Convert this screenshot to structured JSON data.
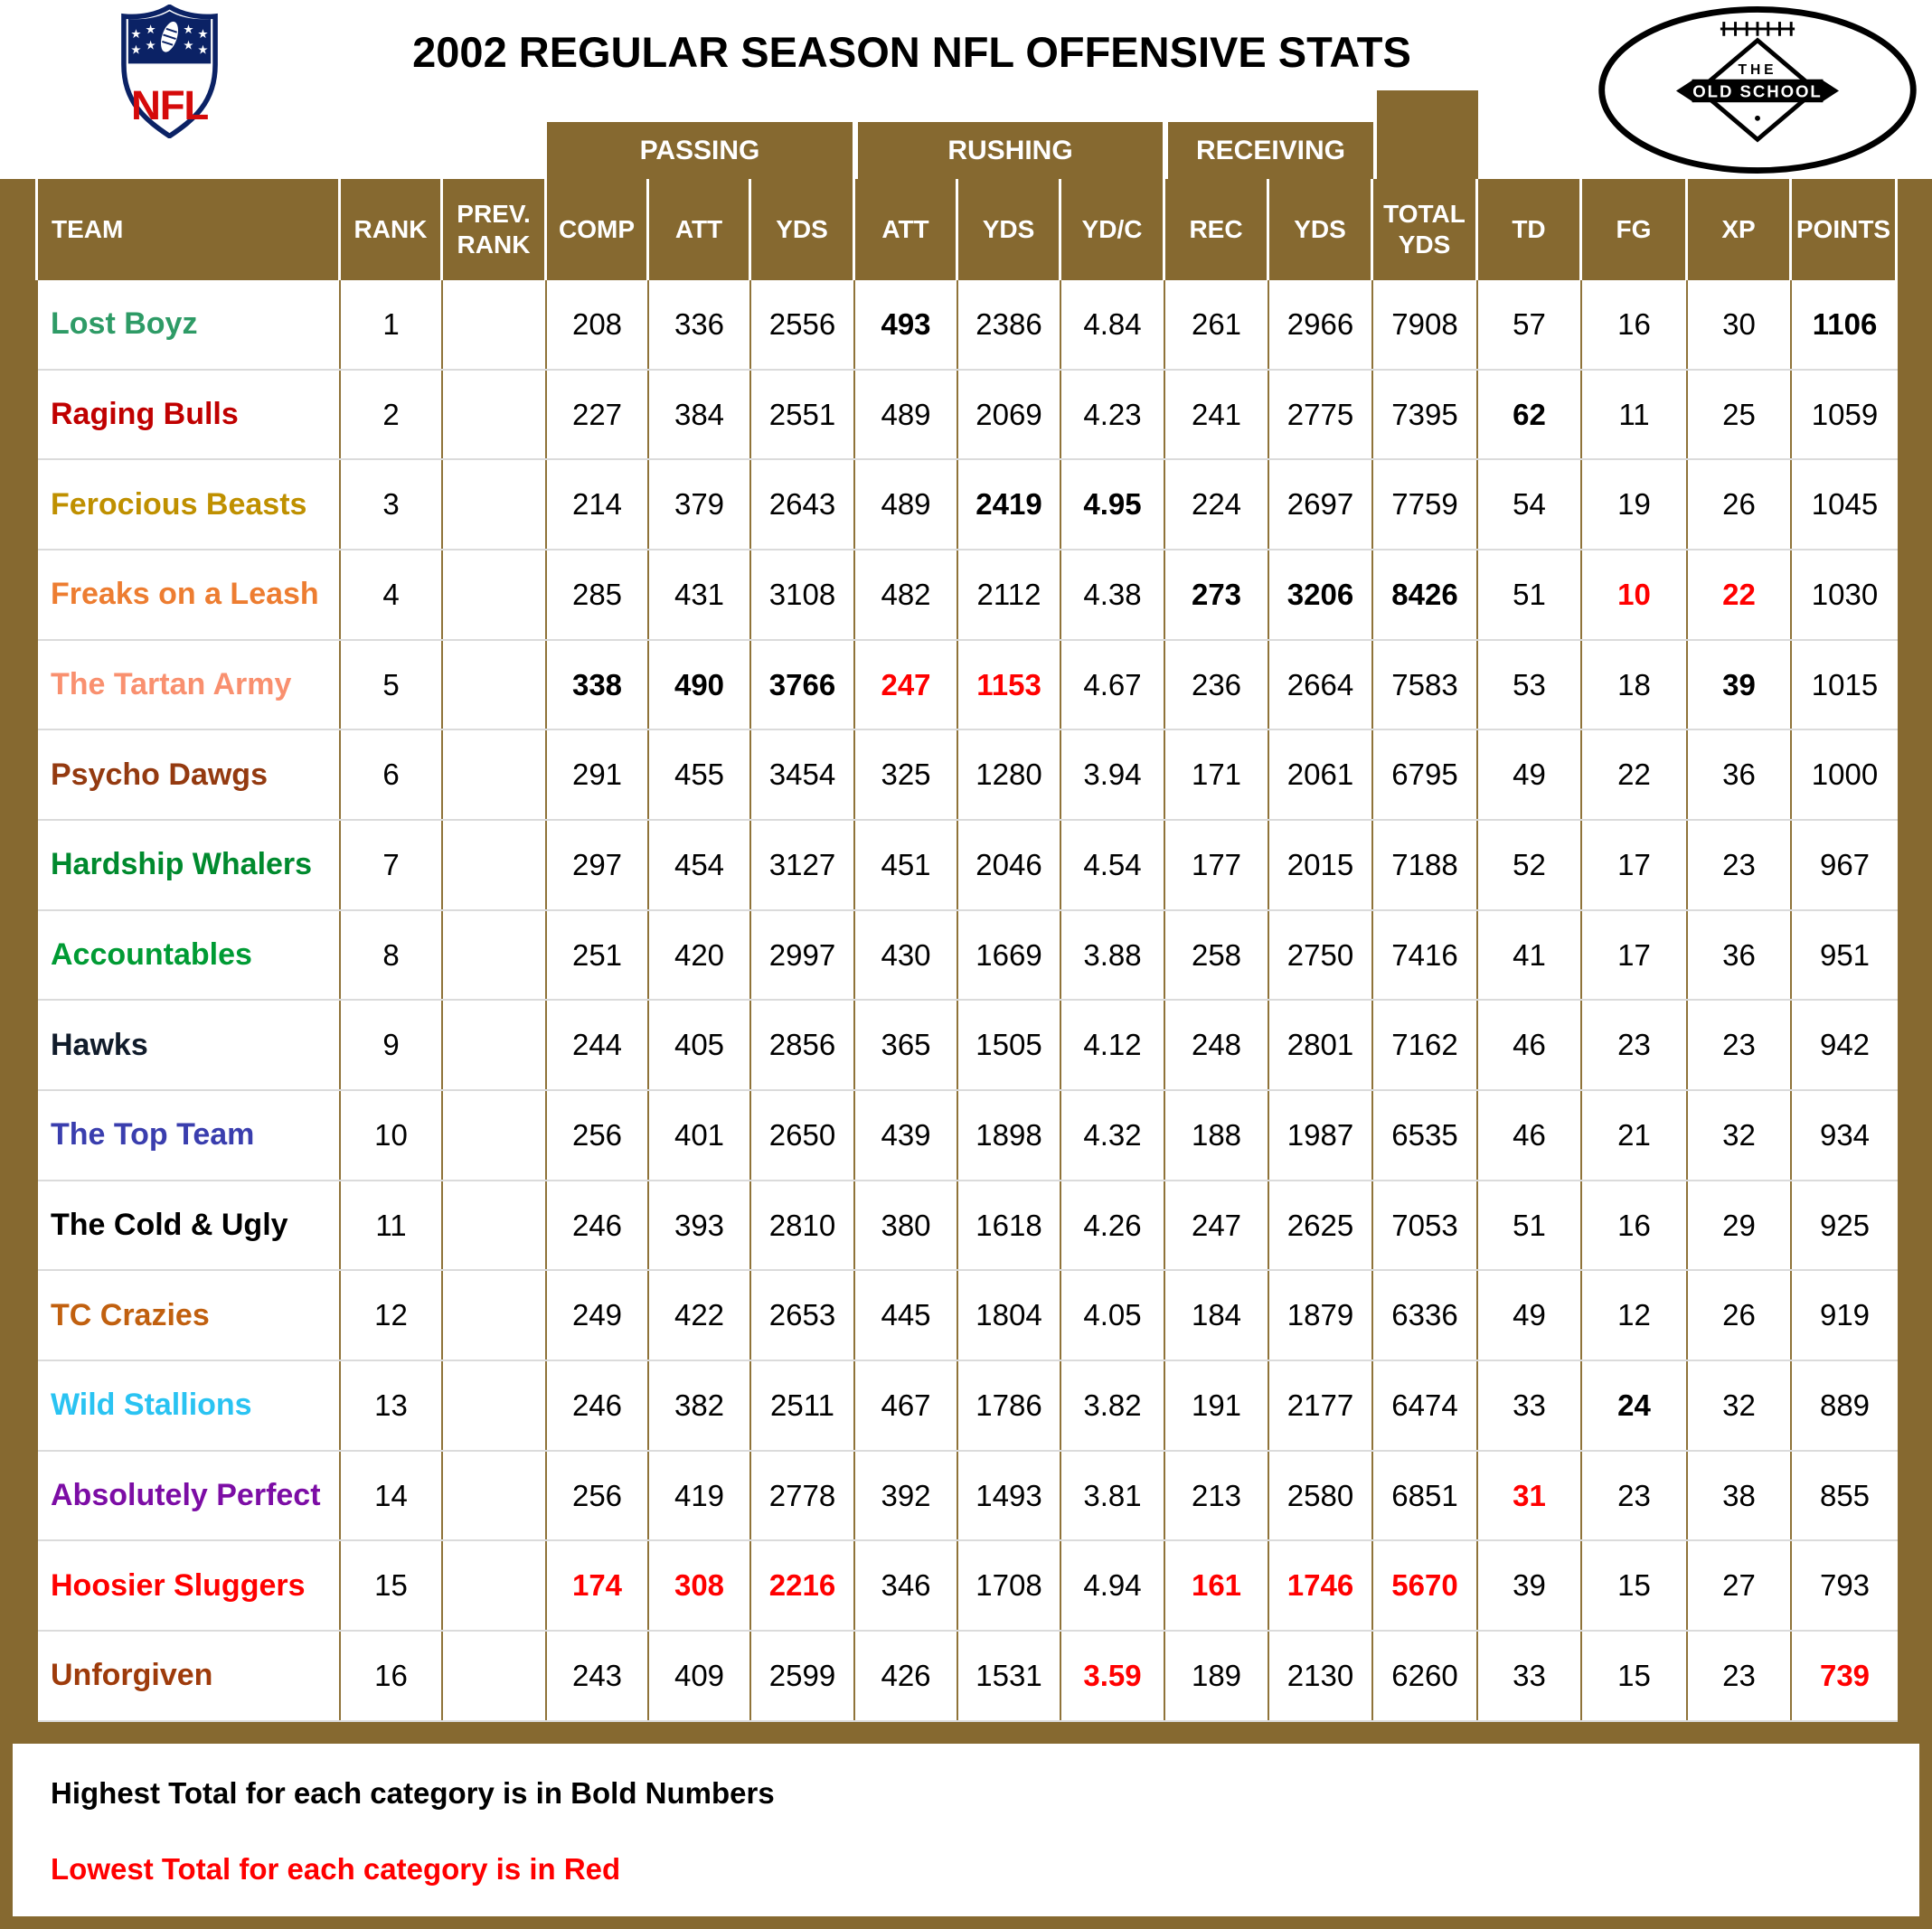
{
  "header": {
    "title": "2002 REGULAR SEASON NFL OFFENSIVE STATS",
    "nfl_logo_text": "NFL",
    "badge": {
      "the": "THE",
      "name": "OLD SCHOOL"
    }
  },
  "colors": {
    "header_brown": "#866930",
    "grid_vline": "#8F7339",
    "grid_hline": "#DBDBDB",
    "highlight_red": "#FF0000",
    "nfl_navy": "#0B2265",
    "nfl_red": "#D50A0A"
  },
  "table": {
    "group_headers": [
      {
        "label": "PASSING"
      },
      {
        "label": "RUSHING"
      },
      {
        "label": "RECEIVING"
      }
    ],
    "columns": [
      "TEAM",
      "RANK",
      "PREV. RANK",
      "COMP",
      "ATT",
      "YDS",
      "ATT",
      "YDS",
      "YD/C",
      "REC",
      "YDS",
      "TOTAL YDS",
      "TD",
      "FG",
      "XP",
      "POINTS"
    ],
    "rows": [
      {
        "team": "Lost Boyz",
        "team_color": "#2E9B66",
        "rank": "1",
        "prev_rank": "",
        "stats": [
          {
            "v": "208"
          },
          {
            "v": "336"
          },
          {
            "v": "2556"
          },
          {
            "v": "493",
            "s": "bold"
          },
          {
            "v": "2386"
          },
          {
            "v": "4.84"
          },
          {
            "v": "261"
          },
          {
            "v": "2966"
          },
          {
            "v": "7908"
          },
          {
            "v": "57"
          },
          {
            "v": "16"
          },
          {
            "v": "30"
          },
          {
            "v": "1106",
            "s": "bold"
          }
        ]
      },
      {
        "team": "Raging Bulls",
        "team_color": "#C00000",
        "rank": "2",
        "prev_rank": "",
        "stats": [
          {
            "v": "227"
          },
          {
            "v": "384"
          },
          {
            "v": "2551"
          },
          {
            "v": "489"
          },
          {
            "v": "2069"
          },
          {
            "v": "4.23"
          },
          {
            "v": "241"
          },
          {
            "v": "2775"
          },
          {
            "v": "7395"
          },
          {
            "v": "62",
            "s": "bold"
          },
          {
            "v": "11"
          },
          {
            "v": "25"
          },
          {
            "v": "1059"
          }
        ]
      },
      {
        "team": "Ferocious Beasts",
        "team_color": "#BF9000",
        "rank": "3",
        "prev_rank": "",
        "stats": [
          {
            "v": "214"
          },
          {
            "v": "379"
          },
          {
            "v": "2643"
          },
          {
            "v": "489"
          },
          {
            "v": "2419",
            "s": "bold"
          },
          {
            "v": "4.95",
            "s": "bold"
          },
          {
            "v": "224"
          },
          {
            "v": "2697"
          },
          {
            "v": "7759"
          },
          {
            "v": "54"
          },
          {
            "v": "19"
          },
          {
            "v": "26"
          },
          {
            "v": "1045"
          }
        ]
      },
      {
        "team": "Freaks on a Leash",
        "team_color": "#ED7D31",
        "rank": "4",
        "prev_rank": "",
        "stats": [
          {
            "v": "285"
          },
          {
            "v": "431"
          },
          {
            "v": "3108"
          },
          {
            "v": "482"
          },
          {
            "v": "2112"
          },
          {
            "v": "4.38"
          },
          {
            "v": "273",
            "s": "bold"
          },
          {
            "v": "3206",
            "s": "bold"
          },
          {
            "v": "8426",
            "s": "bold"
          },
          {
            "v": "51"
          },
          {
            "v": "10",
            "s": "red"
          },
          {
            "v": "22",
            "s": "red"
          },
          {
            "v": "1030"
          }
        ]
      },
      {
        "team": "The Tartan Army",
        "team_color": "#F9906F",
        "rank": "5",
        "prev_rank": "",
        "stats": [
          {
            "v": "338",
            "s": "bold"
          },
          {
            "v": "490",
            "s": "bold"
          },
          {
            "v": "3766",
            "s": "bold"
          },
          {
            "v": "247",
            "s": "red"
          },
          {
            "v": "1153",
            "s": "red"
          },
          {
            "v": "4.67"
          },
          {
            "v": "236"
          },
          {
            "v": "2664"
          },
          {
            "v": "7583"
          },
          {
            "v": "53"
          },
          {
            "v": "18"
          },
          {
            "v": "39",
            "s": "bold"
          },
          {
            "v": "1015"
          }
        ]
      },
      {
        "team": "Psycho Dawgs",
        "team_color": "#943A10",
        "rank": "6",
        "prev_rank": "",
        "stats": [
          {
            "v": "291"
          },
          {
            "v": "455"
          },
          {
            "v": "3454"
          },
          {
            "v": "325"
          },
          {
            "v": "1280"
          },
          {
            "v": "3.94"
          },
          {
            "v": "171"
          },
          {
            "v": "2061"
          },
          {
            "v": "6795"
          },
          {
            "v": "49"
          },
          {
            "v": "22"
          },
          {
            "v": "36"
          },
          {
            "v": "1000"
          }
        ]
      },
      {
        "team": "Hardship Whalers",
        "team_color": "#008A2E",
        "rank": "7",
        "prev_rank": "",
        "stats": [
          {
            "v": "297"
          },
          {
            "v": "454"
          },
          {
            "v": "3127"
          },
          {
            "v": "451"
          },
          {
            "v": "2046"
          },
          {
            "v": "4.54"
          },
          {
            "v": "177"
          },
          {
            "v": "2015"
          },
          {
            "v": "7188"
          },
          {
            "v": "52"
          },
          {
            "v": "17"
          },
          {
            "v": "23"
          },
          {
            "v": "967"
          }
        ]
      },
      {
        "team": "Accountables",
        "team_color": "#009B34",
        "rank": "8",
        "prev_rank": "",
        "stats": [
          {
            "v": "251"
          },
          {
            "v": "420"
          },
          {
            "v": "2997"
          },
          {
            "v": "430"
          },
          {
            "v": "1669"
          },
          {
            "v": "3.88"
          },
          {
            "v": "258"
          },
          {
            "v": "2750"
          },
          {
            "v": "7416"
          },
          {
            "v": "41"
          },
          {
            "v": "17"
          },
          {
            "v": "36"
          },
          {
            "v": "951"
          }
        ]
      },
      {
        "team": "Hawks",
        "team_color": "#111C2B",
        "rank": "9",
        "prev_rank": "",
        "stats": [
          {
            "v": "244"
          },
          {
            "v": "405"
          },
          {
            "v": "2856"
          },
          {
            "v": "365"
          },
          {
            "v": "1505"
          },
          {
            "v": "4.12"
          },
          {
            "v": "248"
          },
          {
            "v": "2801"
          },
          {
            "v": "7162"
          },
          {
            "v": "46"
          },
          {
            "v": "23"
          },
          {
            "v": "23"
          },
          {
            "v": "942"
          }
        ]
      },
      {
        "team": "The Top Team",
        "team_color": "#3A3EAE",
        "rank": "10",
        "prev_rank": "",
        "stats": [
          {
            "v": "256"
          },
          {
            "v": "401"
          },
          {
            "v": "2650"
          },
          {
            "v": "439"
          },
          {
            "v": "1898"
          },
          {
            "v": "4.32"
          },
          {
            "v": "188"
          },
          {
            "v": "1987"
          },
          {
            "v": "6535"
          },
          {
            "v": "46"
          },
          {
            "v": "21"
          },
          {
            "v": "32"
          },
          {
            "v": "934"
          }
        ]
      },
      {
        "team": "The Cold & Ugly",
        "team_color": "#000000",
        "rank": "11",
        "prev_rank": "",
        "stats": [
          {
            "v": "246"
          },
          {
            "v": "393"
          },
          {
            "v": "2810"
          },
          {
            "v": "380"
          },
          {
            "v": "1618"
          },
          {
            "v": "4.26"
          },
          {
            "v": "247"
          },
          {
            "v": "2625"
          },
          {
            "v": "7053"
          },
          {
            "v": "51"
          },
          {
            "v": "16"
          },
          {
            "v": "29"
          },
          {
            "v": "925"
          }
        ]
      },
      {
        "team": "TC Crazies",
        "team_color": "#C1600F",
        "rank": "12",
        "prev_rank": "",
        "stats": [
          {
            "v": "249"
          },
          {
            "v": "422"
          },
          {
            "v": "2653"
          },
          {
            "v": "445"
          },
          {
            "v": "1804"
          },
          {
            "v": "4.05"
          },
          {
            "v": "184"
          },
          {
            "v": "1879"
          },
          {
            "v": "6336"
          },
          {
            "v": "49"
          },
          {
            "v": "12"
          },
          {
            "v": "26"
          },
          {
            "v": "919"
          }
        ]
      },
      {
        "team": "Wild Stallions",
        "team_color": "#2AC3F2",
        "rank": "13",
        "prev_rank": "",
        "stats": [
          {
            "v": "246"
          },
          {
            "v": "382"
          },
          {
            "v": "2511"
          },
          {
            "v": "467"
          },
          {
            "v": "1786"
          },
          {
            "v": "3.82"
          },
          {
            "v": "191"
          },
          {
            "v": "2177"
          },
          {
            "v": "6474"
          },
          {
            "v": "33"
          },
          {
            "v": "24",
            "s": "bold"
          },
          {
            "v": "32"
          },
          {
            "v": "889"
          }
        ]
      },
      {
        "team": "Absolutely Perfect",
        "team_color": "#7C0DA5",
        "rank": "14",
        "prev_rank": "",
        "stats": [
          {
            "v": "256"
          },
          {
            "v": "419"
          },
          {
            "v": "2778"
          },
          {
            "v": "392"
          },
          {
            "v": "1493"
          },
          {
            "v": "3.81"
          },
          {
            "v": "213"
          },
          {
            "v": "2580"
          },
          {
            "v": "6851"
          },
          {
            "v": "31",
            "s": "red"
          },
          {
            "v": "23"
          },
          {
            "v": "38"
          },
          {
            "v": "855"
          }
        ]
      },
      {
        "team": "Hoosier Sluggers",
        "team_color": "#FF0000",
        "rank": "15",
        "prev_rank": "",
        "stats": [
          {
            "v": "174",
            "s": "red"
          },
          {
            "v": "308",
            "s": "red"
          },
          {
            "v": "2216",
            "s": "red"
          },
          {
            "v": "346"
          },
          {
            "v": "1708"
          },
          {
            "v": "4.94"
          },
          {
            "v": "161",
            "s": "red"
          },
          {
            "v": "1746",
            "s": "red"
          },
          {
            "v": "5670",
            "s": "red"
          },
          {
            "v": "39"
          },
          {
            "v": "15"
          },
          {
            "v": "27"
          },
          {
            "v": "793"
          }
        ]
      },
      {
        "team": "Unforgiven",
        "team_color": "#9E3B0B",
        "rank": "16",
        "prev_rank": "",
        "stats": [
          {
            "v": "243"
          },
          {
            "v": "409"
          },
          {
            "v": "2599"
          },
          {
            "v": "426"
          },
          {
            "v": "1531"
          },
          {
            "v": "3.59",
            "s": "red"
          },
          {
            "v": "189"
          },
          {
            "v": "2130"
          },
          {
            "v": "6260"
          },
          {
            "v": "33"
          },
          {
            "v": "15"
          },
          {
            "v": "23"
          },
          {
            "v": "739",
            "s": "red"
          }
        ]
      }
    ]
  },
  "footnotes": [
    {
      "text": "Highest Total for each category is in Bold Numbers",
      "color": "#000000"
    },
    {
      "text": "Lowest Total for each category is in Red",
      "color": "#FF0000"
    }
  ]
}
